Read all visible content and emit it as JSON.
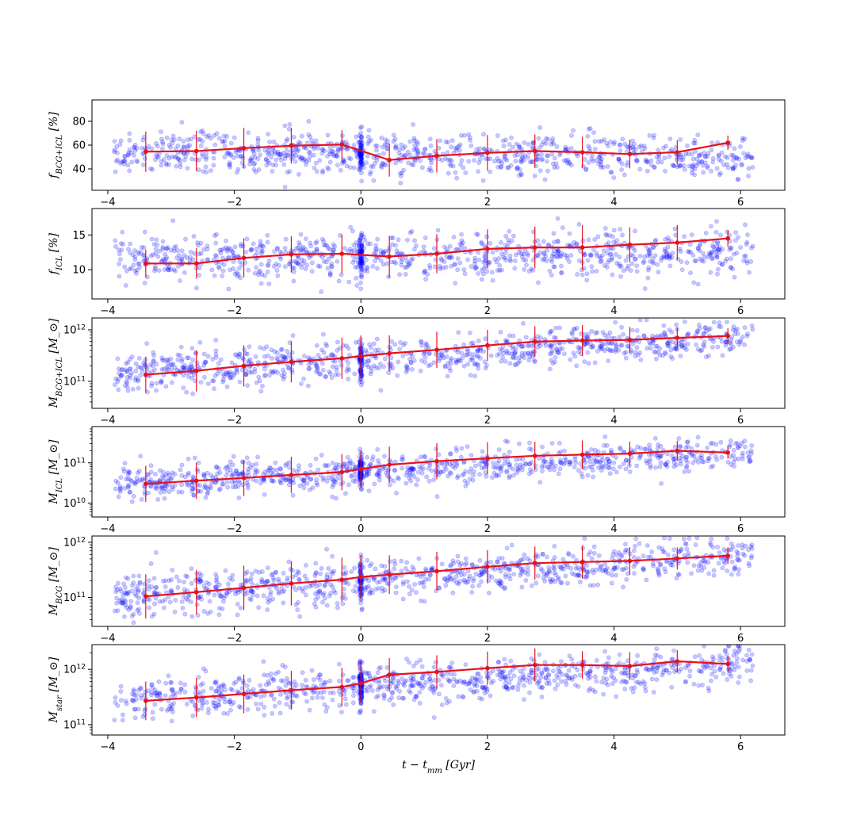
{
  "chart_data": [
    {
      "type": "scatter",
      "ylabel": "f_{BCG+ICL} [%]",
      "yscale": "linear",
      "xlim": [
        -4.25,
        6.7
      ],
      "ylim": [
        22,
        98
      ],
      "yticks": [
        40,
        60,
        80
      ],
      "xticks": [
        -4,
        -2,
        0,
        2,
        4,
        6
      ],
      "colors": {
        "scatter": "#0000ff",
        "median": "#e8101c"
      },
      "median": {
        "x": [
          -3.4,
          -2.6,
          -1.85,
          -1.1,
          -0.3,
          0.45,
          1.2,
          2.0,
          2.75,
          3.5,
          4.25,
          5.0,
          5.8
        ],
        "y": [
          54.5,
          55.0,
          57.5,
          59.5,
          60.5,
          47.5,
          51.0,
          53.5,
          55.0,
          54.0,
          52.5,
          54.0,
          62.0
        ],
        "err": [
          17,
          17,
          17,
          15,
          12,
          14,
          14,
          15,
          14,
          13,
          12,
          10,
          6
        ]
      },
      "scatter_model": {
        "centers": [
          55,
          50
        ],
        "spreads": [
          16,
          16
        ],
        "low": 22,
        "high": 93
      }
    },
    {
      "type": "scatter",
      "ylabel": "f_{ICL} [%]",
      "yscale": "linear",
      "xlim": [
        -4.25,
        6.7
      ],
      "ylim": [
        5.8,
        18.8
      ],
      "yticks": [
        10,
        15
      ],
      "xticks": [
        -4,
        -2,
        0,
        2,
        4,
        6
      ],
      "colors": {
        "scatter": "#0000ff",
        "median": "#e8101c"
      },
      "median": {
        "x": [
          -3.4,
          -2.6,
          -1.85,
          -1.1,
          -0.3,
          0.45,
          1.2,
          2.0,
          2.75,
          3.5,
          4.25,
          5.0,
          5.8
        ],
        "y": [
          10.9,
          10.9,
          11.7,
          12.2,
          12.3,
          11.9,
          12.3,
          13.0,
          13.2,
          13.2,
          13.6,
          13.9,
          14.5
        ],
        "err": [
          2.0,
          2.2,
          2.8,
          2.6,
          2.8,
          3.0,
          2.8,
          2.8,
          3.0,
          3.2,
          2.5,
          2.5,
          1.2
        ]
      },
      "scatter_model": {
        "centers": [
          11.5,
          12.5
        ],
        "spreads": [
          3.0,
          3.0
        ],
        "low": 5.8,
        "high": 18.5
      }
    },
    {
      "type": "scatter",
      "ylabel": "M_{BCG+ICL} [M_⊙]",
      "yscale": "log",
      "xlim": [
        -4.25,
        6.7
      ],
      "ylim": [
        30000000000.0,
        1700000000000.0
      ],
      "yticks": [
        100000000000.0,
        1000000000000.0
      ],
      "ytick_labels": [
        "10^11",
        "10^12"
      ],
      "xticks": [
        -4,
        -2,
        0,
        2,
        4,
        6
      ],
      "colors": {
        "scatter": "#0000ff",
        "median": "#e8101c"
      },
      "median": {
        "x": [
          -3.4,
          -2.6,
          -1.85,
          -1.1,
          -0.3,
          0.0,
          0.45,
          1.2,
          2.0,
          2.75,
          3.5,
          4.25,
          5.0,
          5.8
        ],
        "y": [
          135000000000.0,
          160000000000.0,
          200000000000.0,
          240000000000.0,
          280000000000.0,
          310000000000.0,
          350000000000.0,
          410000000000.0,
          500000000000.0,
          590000000000.0,
          620000000000.0,
          640000000000.0,
          700000000000.0,
          760000000000.0
        ],
        "err": [
          0.35,
          0.4,
          0.4,
          0.4,
          0.4,
          0.4,
          0.35,
          0.35,
          0.3,
          0.3,
          0.3,
          0.25,
          0.2,
          0.15
        ]
      },
      "scatter_model": {
        "centers": [
          135000000000.0,
          760000000000.0
        ],
        "spreads": [
          0.38,
          0.3
        ],
        "low": 30000000000.0,
        "high": 1600000000000.0
      }
    },
    {
      "type": "scatter",
      "ylabel": "M_{ICL} [M_⊙]",
      "yscale": "log",
      "xlim": [
        -4.25,
        6.7
      ],
      "ylim": [
        4500000000.0,
        800000000000.0
      ],
      "yticks": [
        10000000000.0,
        100000000000.0
      ],
      "ytick_labels": [
        "10^10",
        "10^11"
      ],
      "xticks": [
        -4,
        -2,
        0,
        2,
        4,
        6
      ],
      "colors": {
        "scatter": "#0000ff",
        "median": "#e8101c"
      },
      "median": {
        "x": [
          -3.4,
          -2.6,
          -1.85,
          -1.1,
          -0.3,
          0.0,
          0.45,
          1.2,
          2.0,
          2.75,
          3.5,
          4.25,
          5.0,
          5.8
        ],
        "y": [
          30000000000.0,
          36000000000.0,
          42000000000.0,
          50000000000.0,
          59000000000.0,
          70000000000.0,
          90000000000.0,
          110000000000.0,
          130000000000.0,
          150000000000.0,
          160000000000.0,
          170000000000.0,
          200000000000.0,
          180000000000.0
        ],
        "err": [
          0.45,
          0.45,
          0.45,
          0.45,
          0.45,
          0.45,
          0.45,
          0.45,
          0.4,
          0.35,
          0.35,
          0.3,
          0.25,
          0.15
        ]
      },
      "scatter_model": {
        "centers": [
          30000000000.0,
          180000000000.0
        ],
        "spreads": [
          0.4,
          0.35
        ],
        "low": 4500000000.0,
        "high": 750000000000.0
      }
    },
    {
      "type": "scatter",
      "ylabel": "M_{BCG} [M_⊙]",
      "yscale": "log",
      "xlim": [
        -4.25,
        6.7
      ],
      "ylim": [
        30000000000.0,
        1300000000000.0
      ],
      "yticks": [
        100000000000.0,
        1000000000000.0
      ],
      "ytick_labels": [
        "10^11",
        "10^12"
      ],
      "xticks": [
        -4,
        -2,
        0,
        2,
        4,
        6
      ],
      "colors": {
        "scatter": "#0000ff",
        "median": "#e8101c"
      },
      "median": {
        "x": [
          -3.4,
          -2.6,
          -1.85,
          -1.1,
          -0.3,
          0.0,
          0.45,
          1.2,
          2.0,
          2.75,
          3.5,
          4.25,
          5.0,
          5.8
        ],
        "y": [
          105000000000.0,
          125000000000.0,
          150000000000.0,
          180000000000.0,
          210000000000.0,
          235000000000.0,
          260000000000.0,
          300000000000.0,
          360000000000.0,
          420000000000.0,
          440000000000.0,
          460000000000.0,
          510000000000.0,
          570000000000.0
        ],
        "err": [
          0.4,
          0.4,
          0.4,
          0.4,
          0.4,
          0.4,
          0.35,
          0.35,
          0.3,
          0.3,
          0.3,
          0.25,
          0.2,
          0.15
        ]
      },
      "scatter_model": {
        "centers": [
          105000000000.0,
          570000000000.0
        ],
        "spreads": [
          0.38,
          0.3
        ],
        "low": 30000000000.0,
        "high": 1200000000000.0
      }
    },
    {
      "type": "scatter",
      "ylabel": "M_{star} [M_⊙]",
      "xlabel": "t − t_{mm} [Gyr]",
      "yscale": "log",
      "xlim": [
        -4.25,
        6.7
      ],
      "ylim": [
        65000000000.0,
        2800000000000.0
      ],
      "yticks": [
        100000000000.0,
        1000000000000.0
      ],
      "ytick_labels": [
        "10^11",
        "10^12"
      ],
      "xticks": [
        -4,
        -2,
        0,
        2,
        4,
        6
      ],
      "colors": {
        "scatter": "#0000ff",
        "median": "#e8101c"
      },
      "median": {
        "x": [
          -3.4,
          -2.6,
          -1.85,
          -1.1,
          -0.3,
          0.0,
          0.45,
          1.2,
          2.0,
          2.75,
          3.5,
          4.25,
          5.0,
          5.8
        ],
        "y": [
          270000000000.0,
          310000000000.0,
          360000000000.0,
          420000000000.0,
          480000000000.0,
          560000000000.0,
          800000000000.0,
          900000000000.0,
          1050000000000.0,
          1200000000000.0,
          1200000000000.0,
          1150000000000.0,
          1400000000000.0,
          1250000000000.0
        ],
        "err": [
          0.35,
          0.35,
          0.35,
          0.35,
          0.35,
          0.35,
          0.3,
          0.3,
          0.3,
          0.3,
          0.25,
          0.25,
          0.2,
          0.15
        ]
      },
      "scatter_model": {
        "centers": [
          270000000000.0,
          1250000000000.0
        ],
        "spreads": [
          0.35,
          0.3
        ],
        "low": 65000000000.0,
        "high": 2700000000000.0
      }
    }
  ]
}
